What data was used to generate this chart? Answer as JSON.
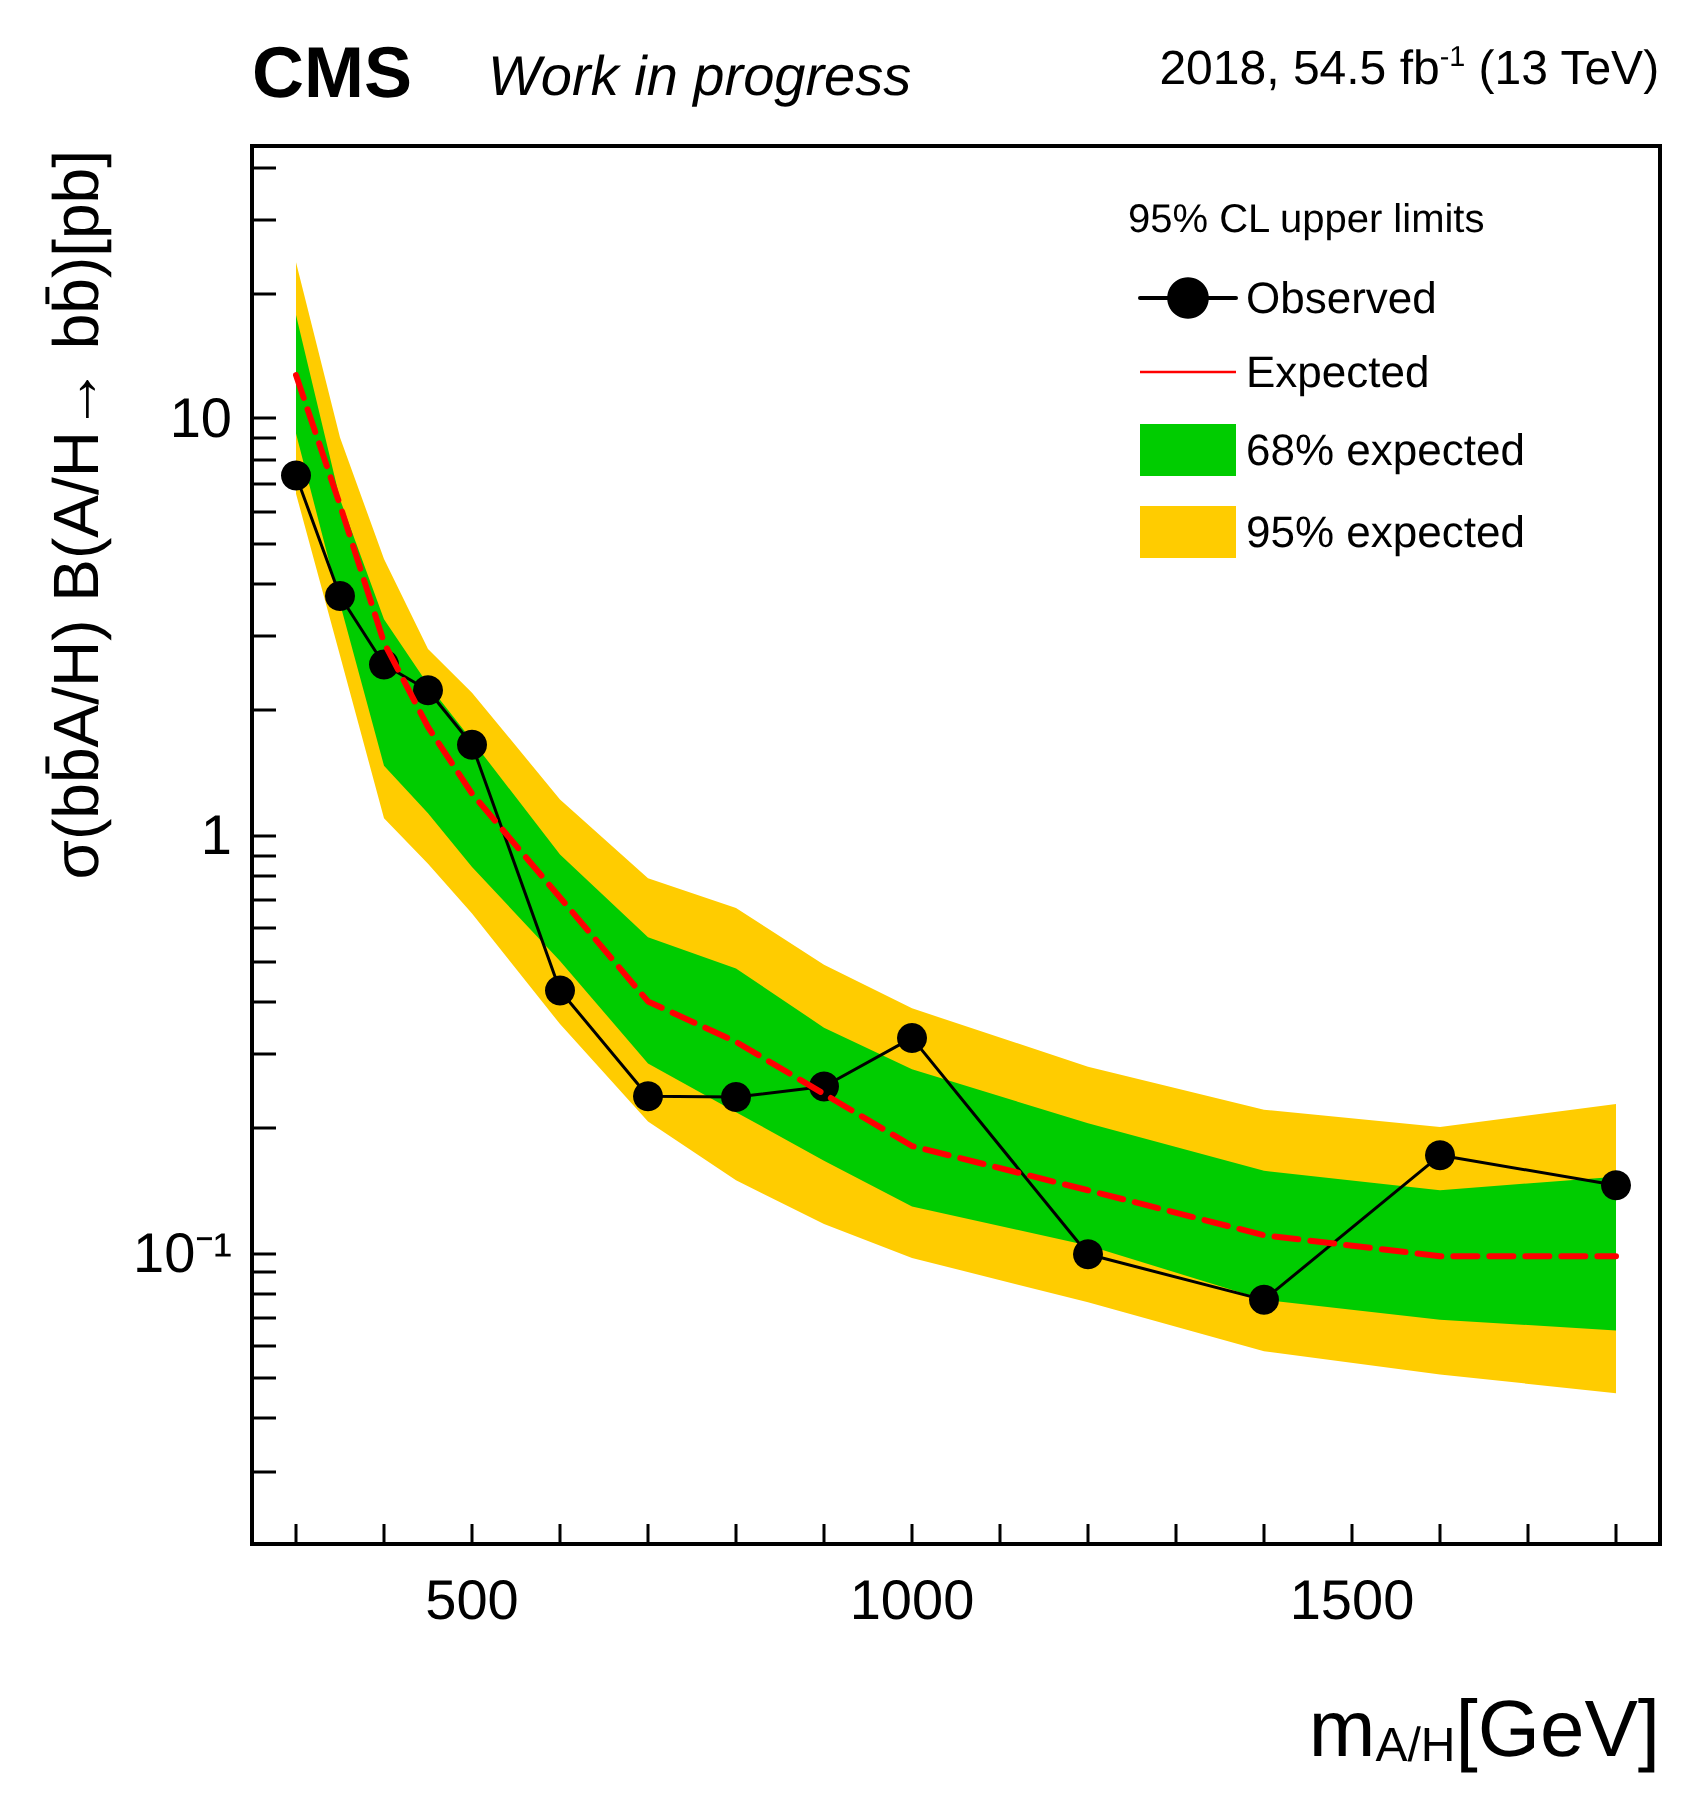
{
  "chart_data": {
    "type": "line",
    "title": "CMS",
    "subtitle": "Work in progress",
    "annotations": [
      "2018, 54.5 fb$^{-1}$ (13 TeV)"
    ],
    "xlabel": "m$_{A/H}$[GeV]",
    "ylabel": "σ(bb̄A/H) B(A/H→ bb̄)[pb]",
    "legend_title": "95% CL upper limits",
    "legend": "top right",
    "log": "y",
    "grid": false,
    "x": [
      300,
      350,
      400,
      450,
      500,
      600,
      700,
      800,
      900,
      1000,
      1200,
      1400,
      1600,
      1800
    ],
    "xlim": [
      250,
      1850
    ],
    "xticks": [
      500,
      1000,
      1500
    ],
    "ylim": [
      0.02,
      45
    ],
    "yticks": [
      {
        "value": 0.1,
        "label": "10⁻¹"
      },
      1,
      10
    ],
    "series": [
      {
        "name": "Observed",
        "type": "line",
        "color": "#000000",
        "marker": "circle",
        "line_style": "solid",
        "values": [
          7.3,
          3.75,
          2.57,
          2.23,
          1.65,
          0.425,
          0.237,
          0.236,
          0.25,
          0.327,
          0.099,
          0.077,
          0.171,
          0.145
        ]
      },
      {
        "name": "Expected",
        "color": "#ff0000",
        "marker": "none",
        "line_style": "dashed",
        "values": [
          12.7,
          6.2,
          2.9,
          1.82,
          1.26,
          0.71,
          0.4,
          0.32,
          0.24,
          0.18,
          0.141,
          0.11,
          0.098,
          0.098
        ]
      },
      {
        "name": "68% expected",
        "type": "line",
        "color": "#00cc00",
        "values": [
          null,
          null,
          null,
          null,
          null,
          null,
          null,
          null,
          null,
          null,
          null,
          null,
          null,
          null
        ],
        "lower": [
          9.2,
          3.6,
          1.47,
          1.13,
          0.84,
          0.5,
          0.284,
          0.217,
          0.166,
          0.129,
          0.104,
          0.077,
          0.069,
          0.065
        ],
        "upper": [
          17.7,
          6.4,
          3.3,
          2.3,
          1.69,
          0.9,
          0.57,
          0.48,
          0.346,
          0.275,
          0.204,
          0.157,
          0.141,
          0.152
        ]
      },
      {
        "name": "95% expected",
        "type": "line",
        "color": "#ffcc00",
        "values": [
          null,
          null,
          null,
          null,
          null,
          null,
          null,
          null,
          null,
          null,
          null,
          null,
          null,
          null
        ],
        "lower": [
          6.6,
          2.7,
          1.1,
          0.855,
          0.65,
          0.353,
          0.206,
          0.149,
          0.117,
          0.097,
          0.076,
          0.058,
          0.051,
          0.046
        ],
        "upper": [
          23.7,
          9.0,
          4.6,
          2.8,
          2.2,
          1.22,
          0.79,
          0.67,
          0.49,
          0.385,
          0.279,
          0.22,
          0.2,
          0.227
        ]
      }
    ]
  }
}
